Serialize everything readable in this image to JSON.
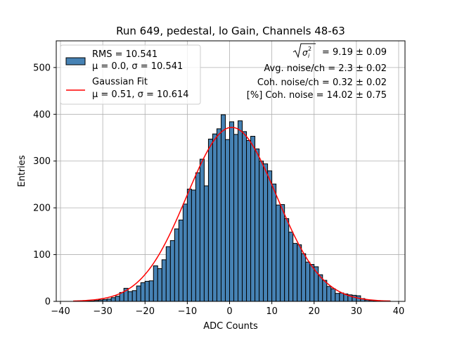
{
  "chart_data": {
    "type": "bar",
    "title": "Run 649, pedestal, lo Gain, Channels 48-63",
    "xlabel": "ADC Counts",
    "ylabel": "Entries",
    "xlim": [
      -41,
      41.5
    ],
    "ylim": [
      0,
      557
    ],
    "xticks": [
      -40,
      -30,
      -20,
      -10,
      0,
      10,
      20,
      30,
      40
    ],
    "yticks": [
      0,
      100,
      200,
      300,
      400,
      500
    ],
    "grid": true,
    "legend_position": "top-left",
    "bin_start": -37,
    "bin_width": 1,
    "values": [
      0,
      1,
      1,
      1,
      1,
      2,
      3,
      4,
      5,
      8,
      11,
      19,
      28,
      21,
      23,
      33,
      40,
      43,
      44,
      76,
      70,
      89,
      117,
      130,
      155,
      174,
      208,
      240,
      238,
      275,
      304,
      247,
      347,
      358,
      369,
      399,
      346,
      384,
      357,
      386,
      363,
      344,
      353,
      326,
      300,
      294,
      279,
      251,
      206,
      207,
      177,
      148,
      124,
      121,
      102,
      84,
      79,
      74,
      57,
      45,
      32,
      27,
      17,
      18,
      16,
      14,
      13,
      12,
      6,
      3,
      2,
      1,
      1,
      1,
      1
    ],
    "series": [
      {
        "name": "histogram",
        "legend_lines": [
          "RMS = 10.541",
          "μ = 0.0, σ = 10.541"
        ],
        "color": "#4682b4"
      },
      {
        "name": "gaussian-fit",
        "legend_lines": [
          "Gaussian Fit",
          "μ = 0.51, σ = 10.614"
        ],
        "color": "#ff0000",
        "mu": 0.51,
        "sigma": 10.614,
        "amplitude": 372
      }
    ],
    "annotations": {
      "sigma_total_value": " = 9.19 ± 0.09",
      "avg_noise": "Avg. noise/ch = 2.3 ± 0.02",
      "coh_noise": "Coh. noise/ch = 0.32 ± 0.02",
      "coh_noise_pct": "[%] Coh. noise = 14.02 ± 0.75"
    }
  }
}
